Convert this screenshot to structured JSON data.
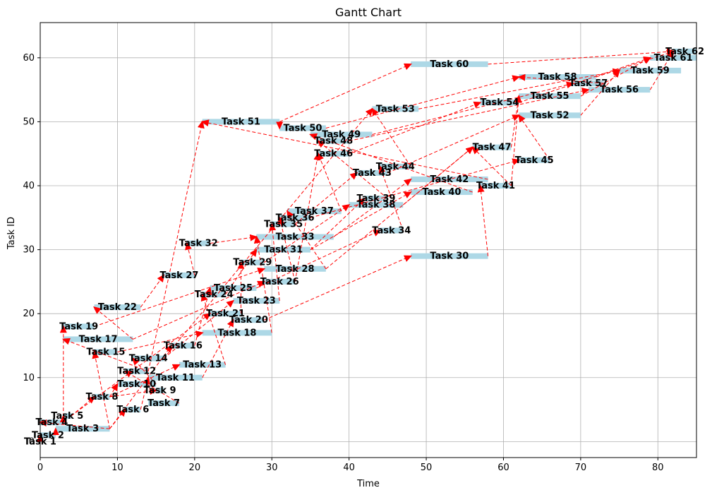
{
  "chart_data": {
    "type": "gantt",
    "title": "Gantt Chart",
    "xlabel": "Time",
    "ylabel": "Task ID",
    "xlim": [
      0,
      85
    ],
    "ylim": [
      -2.5,
      65.5
    ],
    "xticks": [
      0,
      10,
      20,
      30,
      40,
      50,
      60,
      70,
      80
    ],
    "yticks": [
      0,
      10,
      20,
      30,
      40,
      50,
      60
    ],
    "grid": true,
    "colors": {
      "bar": "#add8e6",
      "dependency": "#ff0000",
      "grid": "#b0b0b0"
    },
    "tasks": [
      {
        "id": 1,
        "name": "Task 1",
        "start": 0,
        "end": 0
      },
      {
        "id": 2,
        "name": "Task 2",
        "start": 0,
        "end": 2
      },
      {
        "id": 3,
        "name": "Task 3",
        "start": 2,
        "end": 9
      },
      {
        "id": 4,
        "name": "Task 4",
        "start": 0,
        "end": 3
      },
      {
        "id": 5,
        "name": "Task 5",
        "start": 3,
        "end": 4
      },
      {
        "id": 6,
        "name": "Task 6",
        "start": 11,
        "end": 13
      },
      {
        "id": 7,
        "name": "Task 7",
        "start": 14,
        "end": 18
      },
      {
        "id": 8,
        "name": "Task 8",
        "start": 7,
        "end": 9
      },
      {
        "id": 9,
        "name": "Task 9",
        "start": 15,
        "end": 16
      },
      {
        "id": 10,
        "name": "Task 10",
        "start": 10,
        "end": 15
      },
      {
        "id": 11,
        "name": "Task 11",
        "start": 14,
        "end": 21
      },
      {
        "id": 12,
        "name": "Task 12",
        "start": 11,
        "end": 14
      },
      {
        "id": 13,
        "name": "Task 13",
        "start": 18,
        "end": 24
      },
      {
        "id": 14,
        "name": "Task 14",
        "start": 12,
        "end": 16
      },
      {
        "id": 15,
        "name": "Task 15",
        "start": 7,
        "end": 10
      },
      {
        "id": 16,
        "name": "Task 16",
        "start": 17,
        "end": 20
      },
      {
        "id": 17,
        "name": "Task 17",
        "start": 3,
        "end": 12
      },
      {
        "id": 18,
        "name": "Task 18",
        "start": 21,
        "end": 30
      },
      {
        "id": 19,
        "name": "Task 19",
        "start": 3,
        "end": 7
      },
      {
        "id": 20,
        "name": "Task 20",
        "start": 25,
        "end": 29
      },
      {
        "id": 21,
        "name": "Task 21",
        "start": 22,
        "end": 26
      },
      {
        "id": 22,
        "name": "Task 22",
        "start": 7,
        "end": 13
      },
      {
        "id": 23,
        "name": "Task 23",
        "start": 25,
        "end": 31
      },
      {
        "id": 24,
        "name": "Task 24",
        "start": 21,
        "end": 24
      },
      {
        "id": 25,
        "name": "Task 25",
        "start": 22,
        "end": 28
      },
      {
        "id": 26,
        "name": "Task 26",
        "start": 29,
        "end": 33
      },
      {
        "id": 27,
        "name": "Task 27",
        "start": 16,
        "end": 20
      },
      {
        "id": 28,
        "name": "Task 28",
        "start": 29,
        "end": 37
      },
      {
        "id": 29,
        "name": "Task 29",
        "start": 26,
        "end": 29
      },
      {
        "id": 30,
        "name": "Task 30",
        "start": 48,
        "end": 58
      },
      {
        "id": 31,
        "name": "Task 31",
        "start": 28,
        "end": 35
      },
      {
        "id": 32,
        "name": "Task 32",
        "start": 19,
        "end": 22
      },
      {
        "id": 33,
        "name": "Task 33",
        "start": 28,
        "end": 38
      },
      {
        "id": 34,
        "name": "Task 34",
        "start": 44,
        "end": 47
      },
      {
        "id": 35,
        "name": "Task 35",
        "start": 30,
        "end": 33
      },
      {
        "id": 36,
        "name": "Task 36",
        "start": 31,
        "end": 35
      },
      {
        "id": 37,
        "name": "Task 37",
        "start": 32,
        "end": 39
      },
      {
        "id": 38,
        "name": "Task 38",
        "start": 40,
        "end": 47
      },
      {
        "id": 39,
        "name": "Task 39",
        "start": 42,
        "end": 45
      },
      {
        "id": 40,
        "name": "Task 40",
        "start": 48,
        "end": 56
      },
      {
        "id": 41,
        "name": "Task 41",
        "start": 57,
        "end": 61
      },
      {
        "id": 42,
        "name": "Task 42",
        "start": 48,
        "end": 58
      },
      {
        "id": 43,
        "name": "Task 43",
        "start": 41,
        "end": 45
      },
      {
        "id": 44,
        "name": "Task 44",
        "start": 44,
        "end": 48
      },
      {
        "id": 45,
        "name": "Task 45",
        "start": 62,
        "end": 66
      },
      {
        "id": 46,
        "name": "Task 46",
        "start": 36,
        "end": 40
      },
      {
        "id": 47,
        "name": "Task 47",
        "start": 56,
        "end": 61
      },
      {
        "id": 48,
        "name": "Task 48",
        "start": 36,
        "end": 40
      },
      {
        "id": 49,
        "name": "Task 49",
        "start": 35,
        "end": 43
      },
      {
        "id": 50,
        "name": "Task 50",
        "start": 31,
        "end": 37
      },
      {
        "id": 51,
        "name": "Task 51",
        "start": 21,
        "end": 31
      },
      {
        "id": 52,
        "name": "Task 52",
        "start": 62,
        "end": 70
      },
      {
        "id": 53,
        "name": "Task 53",
        "start": 43,
        "end": 49
      },
      {
        "id": 54,
        "name": "Task 54",
        "start": 57,
        "end": 62
      },
      {
        "id": 55,
        "name": "Task 55",
        "start": 62,
        "end": 70
      },
      {
        "id": 56,
        "name": "Task 56",
        "start": 71,
        "end": 79
      },
      {
        "id": 57,
        "name": "Task 57",
        "start": 69,
        "end": 73
      },
      {
        "id": 58,
        "name": "Task 58",
        "start": 62,
        "end": 72
      },
      {
        "id": 59,
        "name": "Task 59",
        "start": 75,
        "end": 83
      },
      {
        "id": 60,
        "name": "Task 60",
        "start": 48,
        "end": 58
      },
      {
        "id": 61,
        "name": "Task 61",
        "start": 79,
        "end": 85
      },
      {
        "id": 62,
        "name": "Task 62",
        "start": 82,
        "end": 85
      }
    ],
    "dependencies": [
      [
        1,
        2
      ],
      [
        2,
        3
      ],
      [
        3,
        4
      ],
      [
        4,
        5
      ],
      [
        3,
        6
      ],
      [
        5,
        8
      ],
      [
        3,
        15
      ],
      [
        3,
        16
      ],
      [
        4,
        19
      ],
      [
        8,
        9
      ],
      [
        8,
        10
      ],
      [
        6,
        11
      ],
      [
        7,
        12
      ],
      [
        8,
        13
      ],
      [
        10,
        14
      ],
      [
        12,
        17
      ],
      [
        5,
        21
      ],
      [
        17,
        22
      ],
      [
        11,
        20
      ],
      [
        14,
        23
      ],
      [
        15,
        18
      ],
      [
        13,
        24
      ],
      [
        16,
        25
      ],
      [
        22,
        27
      ],
      [
        17,
        26
      ],
      [
        19,
        28
      ],
      [
        21,
        29
      ],
      [
        20,
        30
      ],
      [
        24,
        31
      ],
      [
        27,
        32
      ],
      [
        18,
        33
      ],
      [
        25,
        34
      ],
      [
        23,
        35
      ],
      [
        26,
        36
      ],
      [
        28,
        37
      ],
      [
        29,
        38
      ],
      [
        30,
        41
      ],
      [
        31,
        39
      ],
      [
        31,
        40
      ],
      [
        32,
        33
      ],
      [
        33,
        42
      ],
      [
        35,
        43
      ],
      [
        34,
        44
      ],
      [
        36,
        45
      ],
      [
        37,
        46
      ],
      [
        38,
        47
      ],
      [
        39,
        48
      ],
      [
        40,
        49
      ],
      [
        41,
        47
      ],
      [
        42,
        51
      ],
      [
        43,
        52
      ],
      [
        44,
        53
      ],
      [
        45,
        52
      ],
      [
        46,
        54
      ],
      [
        47,
        55
      ],
      [
        48,
        56
      ],
      [
        49,
        57
      ],
      [
        50,
        58
      ],
      [
        51,
        50
      ],
      [
        51,
        60
      ],
      [
        52,
        59
      ],
      [
        53,
        59
      ],
      [
        54,
        61
      ],
      [
        55,
        61
      ],
      [
        56,
        62
      ],
      [
        57,
        58
      ],
      [
        58,
        62
      ],
      [
        60,
        62
      ],
      [
        41,
        55
      ],
      [
        12,
        51
      ],
      [
        14,
        53
      ],
      [
        28,
        47
      ],
      [
        26,
        46
      ]
    ]
  }
}
